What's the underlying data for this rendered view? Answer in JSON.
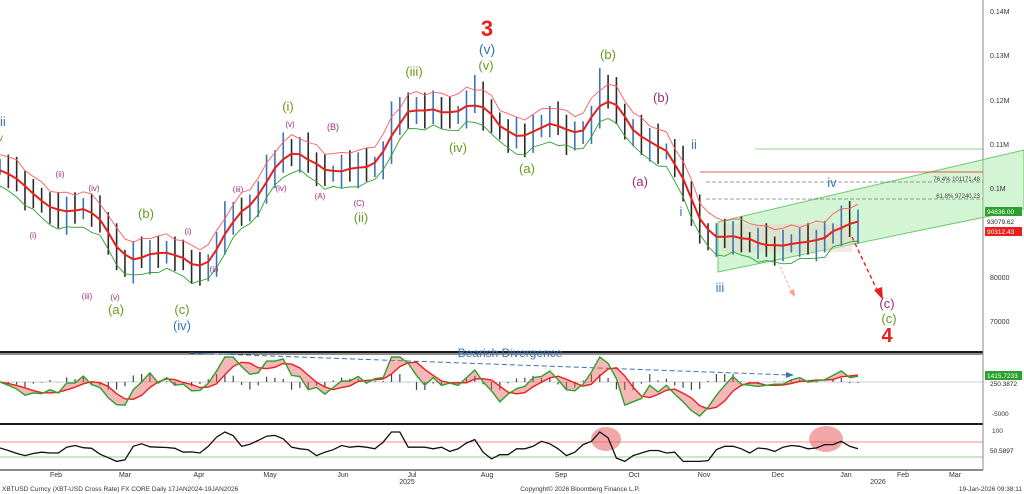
{
  "chart_data": {
    "type": "line",
    "colors": {
      "price": "#e8201c",
      "ma_fast": "#d5421e",
      "up_bar": "#3a73b8",
      "down_bar": "#2a2a2a",
      "band_upper": "#ff5a5a",
      "band_lower": "#2ca02c",
      "channel": "#8fe08f",
      "forecast": "#e8201c"
    },
    "x_ticks": [
      "Feb",
      "Mar",
      "Apr",
      "May",
      "Jun",
      "Jul",
      "Aug",
      "Sep",
      "Oct",
      "Nov",
      "Dec",
      "Jan",
      "Feb",
      "Mar"
    ],
    "x_year_labels": [
      "2025",
      "2026"
    ],
    "y_ticks": [
      "0.14M",
      "0.13M",
      "0.12M",
      "0.11M",
      "0.1M",
      "80000",
      "70000"
    ],
    "price_tags": [
      "94836.00",
      "93079.62",
      "90312.43"
    ],
    "fib_labels": [
      "76.4% 101171.48",
      "61.8% 97240.23"
    ],
    "series": [
      {
        "values": [
          105000,
          103500,
          101800,
          99000,
          98500,
          96500,
          95500,
          93500,
          96000,
          95000,
          96200,
          94800,
          92500,
          89000,
          84500,
          82000,
          85500,
          84500,
          86200,
          85000,
          86500,
          84800,
          84000,
          82500,
          81000,
          83500,
          87500,
          93500,
          94800,
          94500,
          97000,
          99000,
          104000,
          106500,
          109500,
          107000,
          109000,
          106000,
          104500,
          103500,
          103500,
          105000,
          104000,
          106000,
          104500,
          105500,
          108000,
          116000,
          118500,
          116500,
          119000,
          117000,
          118500,
          117500,
          116500,
          117000,
          119500,
          122000,
          117000,
          115500,
          113000,
          111500,
          112500,
          111000,
          113500,
          115000,
          116000,
          114500,
          111500,
          112000,
          113500,
          116000,
          123500,
          122000,
          117500,
          113000,
          113000,
          110000,
          111500,
          108500,
          108500,
          106000,
          99500,
          95500,
          90500,
          88000,
          89500,
          89000,
          90500,
          88500,
          87500,
          88500,
          87000,
          86500,
          87500,
          88000,
          88500,
          87500,
          88500,
          89500,
          90500,
          93500,
          91500,
          93079.62
        ]
      }
    ],
    "wave_labels": [
      "3",
      "(v)",
      "(v)",
      "(iii)",
      "(iv)",
      "(a)",
      "(b)",
      "(b)",
      "(a)",
      "ii",
      "i",
      "iii",
      "iv",
      "(c)",
      "(c)",
      "4",
      "ii",
      "v",
      "(ii)",
      "(iv)",
      "(i)",
      "(iii)",
      "(v)",
      "(a)",
      "(b)",
      "(c)",
      "(iv)",
      "(i)",
      "(ii)",
      "(iii)",
      "(iv)",
      "(i)",
      "(v)",
      "(B)",
      "(A)",
      "(C)",
      "(ii)",
      "(iii)",
      "(iv)",
      "(v)",
      "(ii)"
    ],
    "macd": {
      "text": "Bearish Divergence",
      "labels": [
        "1415.7233",
        "250.3872"
      ],
      "ticks": [
        "-5000"
      ]
    },
    "rsi": {
      "labels": [
        "100",
        "50.5897"
      ],
      "overbought": 70,
      "oversold": 30
    },
    "footer": {
      "left": "XBTUSD Curncy (XBT-USD Cross Rate) FX CORE Daily 17JAN2024-19JAN2026",
      "center": "Copyright© 2026 Bloomberg Finance L.P.",
      "right": "19-Jan-2026 09:38:11"
    }
  }
}
